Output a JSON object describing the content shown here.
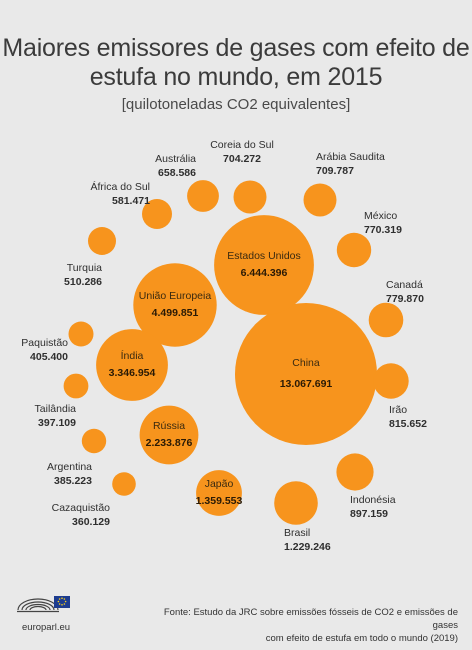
{
  "title": "Maiores emissores de gases com efeito de estufa no mundo, em 2015",
  "subtitle": "[quilotoneladas CO2 equivalentes]",
  "colors": {
    "bubble": "#f7941d",
    "background": "#e9e9e9"
  },
  "chart_data": {
    "type": "bubble",
    "title": "Maiores emissores de gases com efeito de estufa no mundo, em 2015",
    "unit": "[quilotoneladas CO2 equivalentes]",
    "countries": [
      {
        "name": "China",
        "value_label": "13.067.691",
        "value": 13067691
      },
      {
        "name": "Estados Unidos",
        "value_label": "6.444.396",
        "value": 6444396
      },
      {
        "name": "União Europeia",
        "value_label": "4.499.851",
        "value": 4499851
      },
      {
        "name": "Índia",
        "value_label": "3.346.954",
        "value": 3346954
      },
      {
        "name": "Rússia",
        "value_label": "2.233.876",
        "value": 2233876
      },
      {
        "name": "Japão",
        "value_label": "1.359.553",
        "value": 1359553
      },
      {
        "name": "Brasil",
        "value_label": "1.229.246",
        "value": 1229246
      },
      {
        "name": "Indonésia",
        "value_label": "897.159",
        "value": 897159
      },
      {
        "name": "Irão",
        "value_label": "815.652",
        "value": 815652
      },
      {
        "name": "Canadá",
        "value_label": "779.870",
        "value": 779870
      },
      {
        "name": "México",
        "value_label": "770.319",
        "value": 770319
      },
      {
        "name": "Arábia Saudita",
        "value_label": "709.787",
        "value": 709787
      },
      {
        "name": "Coreia do Sul",
        "value_label": "704.272",
        "value": 704272
      },
      {
        "name": "Austrália",
        "value_label": "658.586",
        "value": 658586
      },
      {
        "name": "África do Sul",
        "value_label": "581.471",
        "value": 581471
      },
      {
        "name": "Turquia",
        "value_label": "510.286",
        "value": 510286
      },
      {
        "name": "Paquistão",
        "value_label": "405.400",
        "value": 405400
      },
      {
        "name": "Tailândia",
        "value_label": "397.109",
        "value": 397109
      },
      {
        "name": "Argentina",
        "value_label": "385.223",
        "value": 385223
      },
      {
        "name": "Cazaquistão",
        "value_label": "360.129",
        "value": 360129
      }
    ]
  },
  "footer": {
    "site": "europarl.eu",
    "source_line1": "Fonte: Estudo da JRC sobre emissões fósseis de CO2  e emissões de gases",
    "source_line2": "com efeito de estufa em todo o mundo (2019)"
  }
}
